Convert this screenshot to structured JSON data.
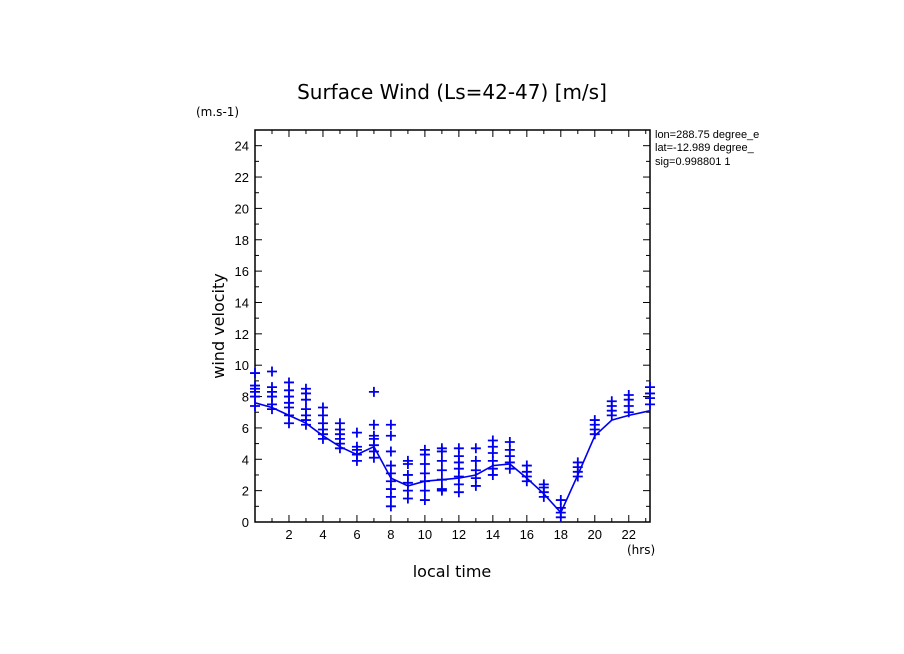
{
  "chart_data": {
    "type": "scatter",
    "title": "Surface Wind  (Ls=42-47) [m/s]",
    "y_unit": "(m.s-1)",
    "x_unit": "(hrs)",
    "xlabel": "local time",
    "ylabel": "wind velocity",
    "xlim": [
      0,
      23.25
    ],
    "ylim": [
      0,
      25
    ],
    "x_ticks": [
      "2",
      "4",
      "6",
      "8",
      "10",
      "12",
      "14",
      "16",
      "18",
      "20",
      "22"
    ],
    "y_ticks": [
      "0",
      "2",
      "4",
      "6",
      "8",
      "10",
      "12",
      "14",
      "16",
      "18",
      "20",
      "22",
      "24"
    ],
    "info": [
      "lon=288.75 degree_e",
      "lat=-12.989 degree_",
      "sig=0.998801 1"
    ],
    "colors": {
      "series": "#0000ee",
      "axis": "#000000"
    },
    "mean_line": {
      "name": "mean",
      "x": [
        0,
        1.0,
        2.0,
        3.0,
        4.0,
        5.0,
        6.0,
        7.0,
        8.0,
        9.0,
        10.0,
        11.0,
        12.0,
        13.0,
        14.0,
        15.0,
        16.0,
        17.0,
        18.0,
        19.0,
        20.0,
        21.0,
        22.0,
        23.25
      ],
      "y": [
        7.6,
        7.3,
        6.8,
        6.3,
        5.5,
        4.8,
        4.3,
        4.8,
        2.8,
        2.3,
        2.6,
        2.7,
        2.8,
        3.0,
        3.6,
        3.7,
        2.8,
        1.8,
        0.6,
        3.0,
        5.5,
        6.5,
        6.8,
        7.1
      ]
    },
    "scatter_groups": [
      {
        "x": 0.0,
        "y": [
          7.4,
          8.0,
          8.3,
          8.5,
          8.7,
          9.5
        ]
      },
      {
        "x": 1.0,
        "y": [
          7.2,
          7.5,
          8.0,
          8.3,
          8.6,
          9.6
        ]
      },
      {
        "x": 2.0,
        "y": [
          6.3,
          6.8,
          7.3,
          7.6,
          8.0,
          8.4,
          8.9
        ]
      },
      {
        "x": 3.0,
        "y": [
          6.2,
          6.5,
          6.8,
          7.2,
          7.8,
          8.2,
          8.5
        ]
      },
      {
        "x": 4.0,
        "y": [
          5.3,
          5.6,
          5.9,
          6.3,
          6.8,
          7.3
        ]
      },
      {
        "x": 5.0,
        "y": [
          4.7,
          5.0,
          5.3,
          5.6,
          5.9,
          6.3
        ]
      },
      {
        "x": 6.0,
        "y": [
          3.9,
          4.3,
          4.6,
          4.8,
          5.7
        ]
      },
      {
        "x": 7.0,
        "y": [
          4.1,
          4.5,
          4.9,
          5.3,
          5.5,
          6.2,
          8.3
        ]
      },
      {
        "x": 8.0,
        "y": [
          1.0,
          1.6,
          2.1,
          2.6,
          3.1,
          3.6,
          4.5,
          5.5,
          6.2
        ]
      },
      {
        "x": 9.0,
        "y": [
          1.5,
          2.0,
          2.5,
          3.0,
          3.7,
          3.9
        ]
      },
      {
        "x": 10.0,
        "y": [
          1.4,
          2.0,
          2.6,
          3.1,
          3.7,
          4.3,
          4.6
        ]
      },
      {
        "x": 11.0,
        "y": [
          2.0,
          2.1,
          2.7,
          3.3,
          3.9,
          4.5,
          4.7
        ]
      },
      {
        "x": 12.0,
        "y": [
          1.9,
          2.4,
          2.9,
          3.4,
          3.8,
          4.2,
          4.7
        ]
      },
      {
        "x": 13.0,
        "y": [
          2.3,
          2.8,
          3.3,
          3.9,
          4.7
        ]
      },
      {
        "x": 14.0,
        "y": [
          3.0,
          3.4,
          3.9,
          4.4,
          4.8,
          5.2
        ]
      },
      {
        "x": 15.0,
        "y": [
          3.4,
          3.8,
          4.2,
          4.6,
          5.1
        ]
      },
      {
        "x": 16.0,
        "y": [
          2.6,
          2.9,
          3.2,
          3.6
        ]
      },
      {
        "x": 17.0,
        "y": [
          1.6,
          1.9,
          2.2,
          2.4
        ]
      },
      {
        "x": 18.0,
        "y": [
          0.3,
          0.6,
          0.9,
          1.4
        ]
      },
      {
        "x": 19.0,
        "y": [
          2.9,
          3.2,
          3.5,
          3.8
        ]
      },
      {
        "x": 20.0,
        "y": [
          5.6,
          5.9,
          6.2,
          6.5
        ]
      },
      {
        "x": 21.0,
        "y": [
          6.8,
          7.1,
          7.4,
          7.7
        ]
      },
      {
        "x": 22.0,
        "y": [
          7.0,
          7.4,
          7.8,
          8.1
        ]
      },
      {
        "x": 23.25,
        "y": [
          7.5,
          7.9,
          8.2,
          8.6
        ]
      }
    ]
  }
}
